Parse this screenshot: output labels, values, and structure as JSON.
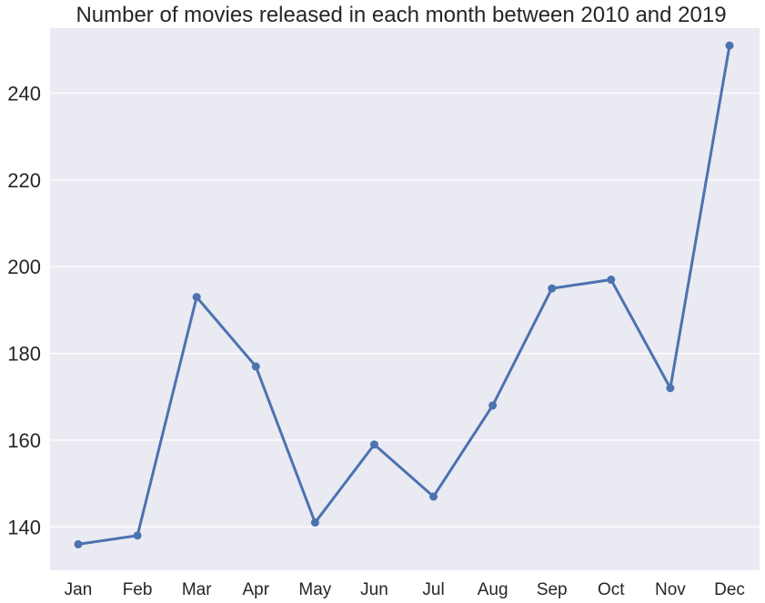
{
  "chart_data": {
    "type": "line",
    "title": "Number of movies released in each month between 2010 and 2019",
    "xlabel": "",
    "ylabel": "",
    "categories": [
      "Jan",
      "Feb",
      "Mar",
      "Apr",
      "May",
      "Jun",
      "Jul",
      "Aug",
      "Sep",
      "Oct",
      "Nov",
      "Dec"
    ],
    "series": [
      {
        "values": [
          136,
          138,
          193,
          177,
          141,
          159,
          147,
          168,
          195,
          197,
          172,
          251
        ]
      }
    ],
    "ylim": [
      130,
      255
    ],
    "yticks": [
      "140",
      "160",
      "180",
      "200",
      "220",
      "240"
    ],
    "grid": true,
    "legend": "none",
    "colors": {
      "line": "#4c72b0",
      "background": "#eaeaf2",
      "grid": "#ffffff"
    }
  }
}
